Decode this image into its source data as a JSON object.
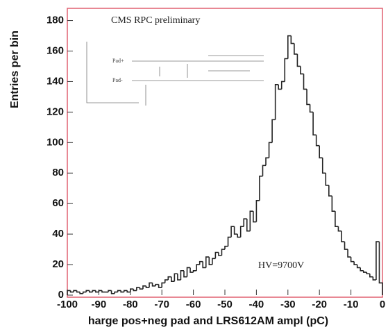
{
  "chart_data": {
    "type": "histogram",
    "x_label": "harge pos+neg pad and LRS612AM ampl (pC)",
    "y_label": "Entries per bin",
    "annotations": [
      "CMS RPC preliminary",
      "HV=9700V"
    ],
    "inset_labels": [
      "Pad+",
      "Pad-"
    ],
    "color": "#222222",
    "frame_color": "#e06070",
    "xlim": [
      -100,
      0
    ],
    "ylim": [
      0,
      188
    ],
    "xticks": [
      -100,
      -90,
      -80,
      -70,
      -60,
      -50,
      -40,
      -30,
      -20,
      -10,
      0
    ],
    "yticks": [
      0,
      20,
      40,
      60,
      80,
      100,
      120,
      140,
      160,
      180
    ],
    "bins": [
      -100,
      -99,
      -98,
      -97,
      -96,
      -95,
      -94,
      -93,
      -92,
      -91,
      -90,
      -89,
      -88,
      -87,
      -86,
      -85,
      -84,
      -83,
      -82,
      -81,
      -80,
      -79,
      -78,
      -77,
      -76,
      -75,
      -74,
      -73,
      -72,
      -71,
      -70,
      -69,
      -68,
      -67,
      -66,
      -65,
      -64,
      -63,
      -62,
      -61,
      -60,
      -59,
      -58,
      -57,
      -56,
      -55,
      -54,
      -53,
      -52,
      -51,
      -50,
      -49,
      -48,
      -47,
      -46,
      -45,
      -44,
      -43,
      -42,
      -41,
      -40,
      -39,
      -38,
      -37,
      -36,
      -35,
      -34,
      -33,
      -32,
      -31,
      -30,
      -29,
      -28,
      -27,
      -26,
      -25,
      -24,
      -23,
      -22,
      -21,
      -20,
      -19,
      -18,
      -17,
      -16,
      -15,
      -14,
      -13,
      -12,
      -11,
      -10,
      -9,
      -8,
      -7,
      -6,
      -5,
      -4,
      -3,
      -2,
      -1,
      0
    ],
    "counts": [
      3,
      2,
      3,
      2,
      1,
      2,
      3,
      2,
      3,
      2,
      3,
      2,
      2,
      3,
      1,
      2,
      3,
      2,
      3,
      2,
      4,
      3,
      5,
      4,
      6,
      5,
      8,
      6,
      7,
      5,
      8,
      10,
      12,
      9,
      14,
      10,
      16,
      12,
      18,
      15,
      16,
      20,
      22,
      18,
      25,
      20,
      24,
      28,
      26,
      30,
      32,
      38,
      45,
      40,
      38,
      45,
      50,
      42,
      55,
      48,
      62,
      78,
      85,
      90,
      100,
      115,
      138,
      135,
      140,
      155,
      170,
      165,
      158,
      150,
      145,
      135,
      125,
      120,
      105,
      98,
      90,
      80,
      72,
      65,
      55,
      45,
      42,
      35,
      30,
      25,
      22,
      20,
      18,
      16,
      15,
      14,
      12,
      10,
      35,
      8
    ]
  }
}
